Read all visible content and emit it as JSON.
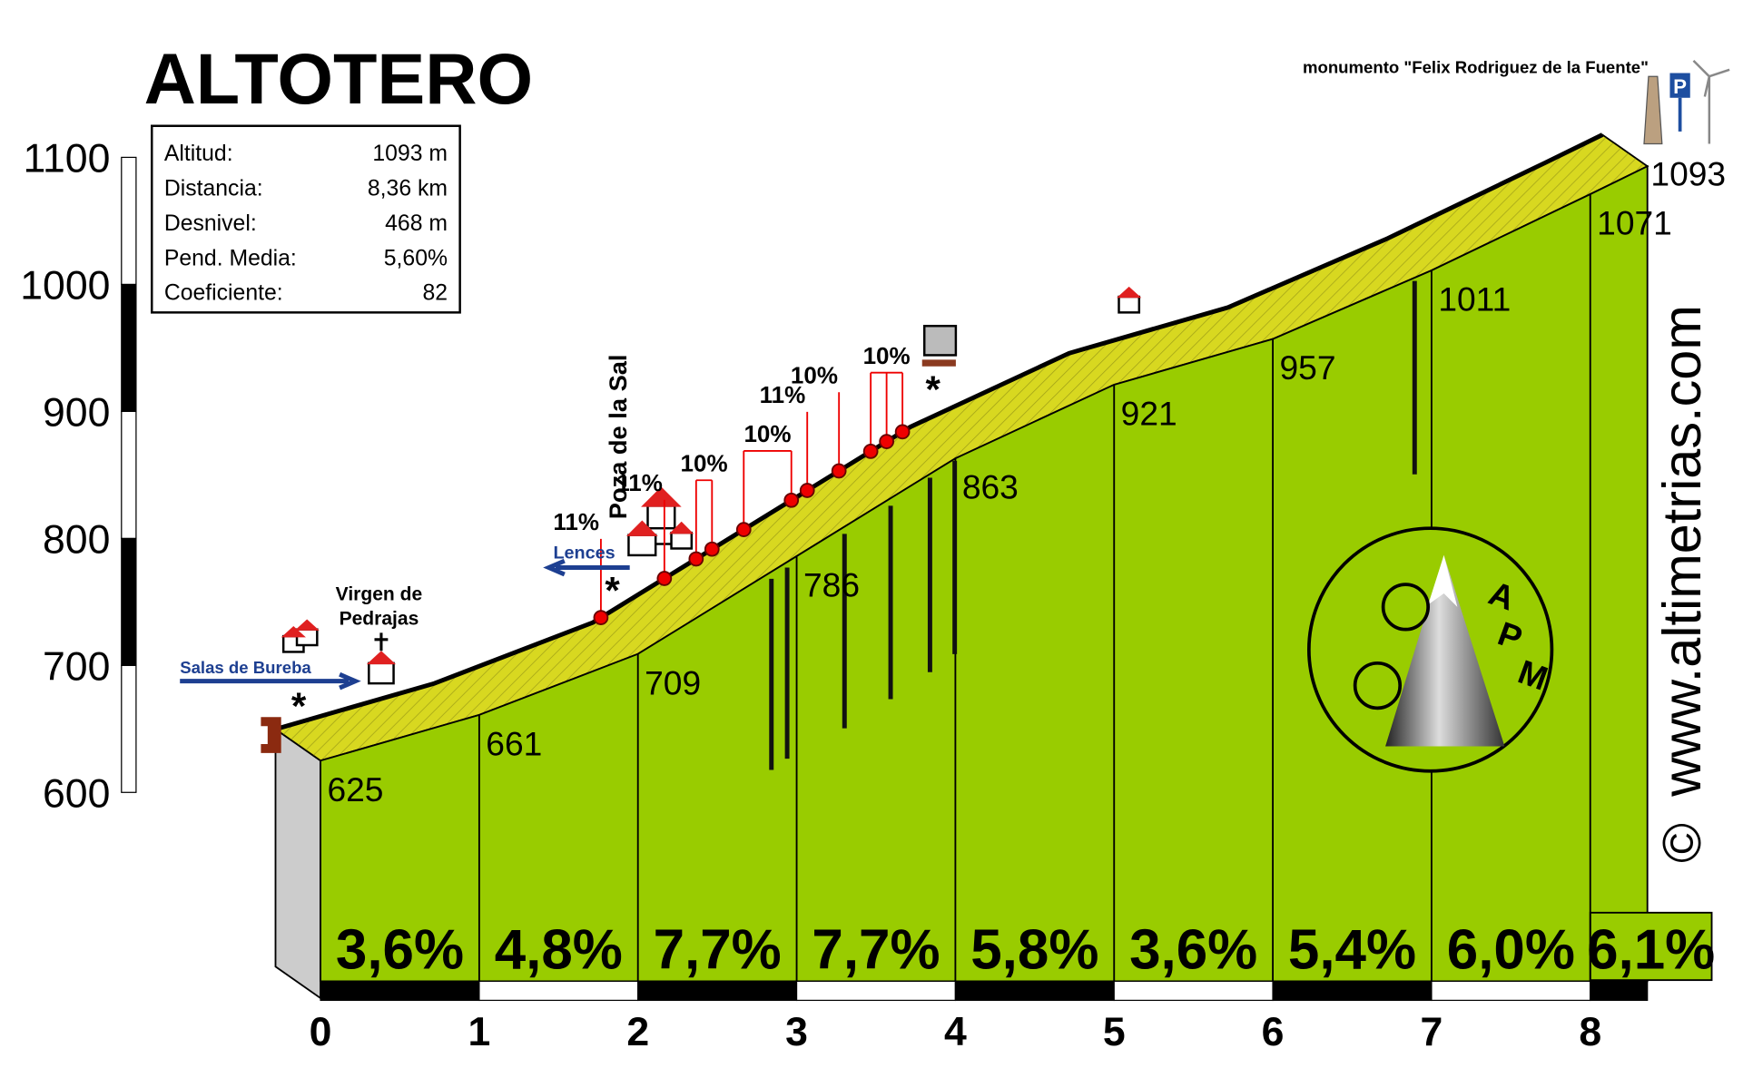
{
  "chart_data": {
    "type": "area",
    "title": "ALTOTERO",
    "info": [
      [
        "Altitud:",
        "1093 m"
      ],
      [
        "Distancia:",
        "8,36 km"
      ],
      [
        "Desnivel:",
        "468 m"
      ],
      [
        "Pend. Media:",
        "5,60%"
      ],
      [
        "Coeficiente:",
        "82"
      ]
    ],
    "x": [
      0,
      1,
      2,
      3,
      4,
      5,
      6,
      7,
      8,
      8.36
    ],
    "values": [
      625,
      661,
      709,
      786,
      863,
      921,
      957,
      1011,
      1071,
      1093
    ],
    "xlim": [
      0,
      8.36
    ],
    "xticks": [
      0,
      1,
      2,
      3,
      4,
      5,
      6,
      7,
      8
    ],
    "ylim": [
      600,
      1100
    ],
    "yticks": [
      600,
      700,
      800,
      900,
      1000,
      1100
    ],
    "color": "#99cc00",
    "band_color": "#d8d820",
    "segments": {
      "values": [
        3.6,
        4.8,
        7.7,
        7.7,
        5.8,
        3.6,
        5.4,
        6.0,
        6.1
      ],
      "value_labels": [
        "3,6%",
        "4,8%",
        "7,7%",
        "7,7%",
        "5,8%",
        "3,6%",
        "5,4%",
        "6,0%",
        "6,1%"
      ]
    },
    "ramps": [
      {
        "x": [
          2.05
        ],
        "value": 11,
        "label": "11%"
      },
      {
        "x": [
          2.45
        ],
        "value": 11,
        "label": "11%"
      },
      {
        "x": [
          2.65,
          2.75
        ],
        "value": 10,
        "label": "10%"
      },
      {
        "x": [
          2.95,
          3.25
        ],
        "value": 10,
        "label": "10%"
      },
      {
        "x": [
          3.35
        ],
        "value": 11,
        "label": "11%"
      },
      {
        "x": [
          3.55
        ],
        "value": 10,
        "label": "10%"
      },
      {
        "x": [
          3.75,
          3.85,
          3.95
        ],
        "value": 10,
        "label": "10%"
      }
    ],
    "annotations": {
      "salas": "Salas de Bureba",
      "virgen": [
        "Virgen de",
        "Pedrajas"
      ],
      "lences": "Lences",
      "poza": "Poza de la Sal",
      "monument": "monumento \"Felix Rodriguez de la Fuente\"",
      "parking": "P",
      "site": "www.altimetrias.com",
      "copyright": "©",
      "logo": [
        "A",
        "P",
        "M"
      ]
    }
  }
}
